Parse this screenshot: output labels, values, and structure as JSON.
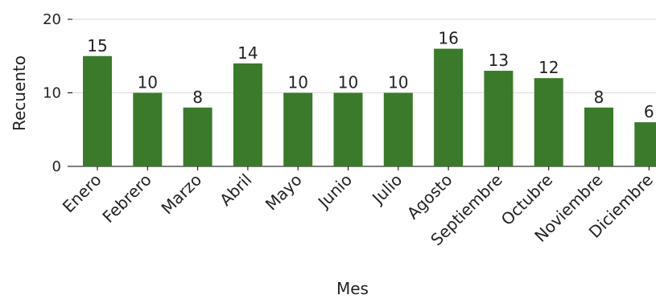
{
  "chart_data": {
    "type": "bar",
    "categories": [
      "Enero",
      "Febrero",
      "Marzo",
      "Abril",
      "Mayo",
      "Junio",
      "Julio",
      "Agosto",
      "Septiembre",
      "Octubre",
      "Noviembre",
      "Diciembre"
    ],
    "values": [
      15,
      10,
      8,
      14,
      10,
      10,
      10,
      16,
      13,
      12,
      8,
      6
    ],
    "xlabel": "Mes",
    "ylabel": "Recuento",
    "ylim": [
      0,
      20
    ],
    "yticks": [
      0,
      10,
      20
    ],
    "grid": true,
    "bar_color": "#3a7a2a"
  }
}
